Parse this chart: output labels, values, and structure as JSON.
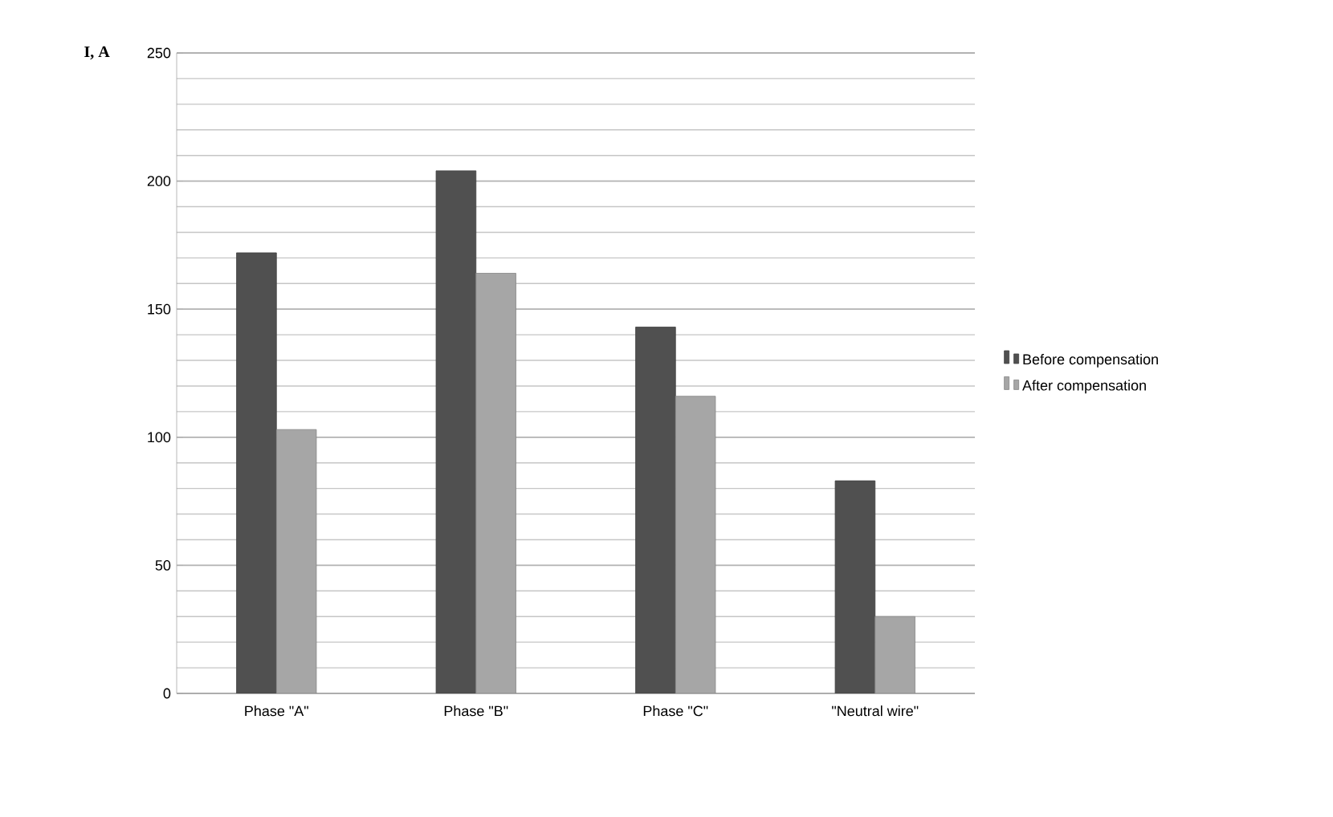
{
  "chart_data": {
    "type": "bar",
    "ylabel": "I, A",
    "categories": [
      "Phase \"A\"",
      "Phase \"B\"",
      "Phase \"C\"",
      "\"Neutral wire\""
    ],
    "series": [
      {
        "name": "Before compensation",
        "color": "#505050",
        "values": [
          172,
          204,
          143,
          83
        ]
      },
      {
        "name": "After compensation",
        "color": "#a6a6a6",
        "values": [
          103,
          164,
          116,
          30
        ]
      }
    ],
    "ylim": [
      0,
      250
    ],
    "yticks": [
      0,
      50,
      100,
      150,
      200,
      250
    ],
    "grid": "y",
    "legend": "right"
  }
}
